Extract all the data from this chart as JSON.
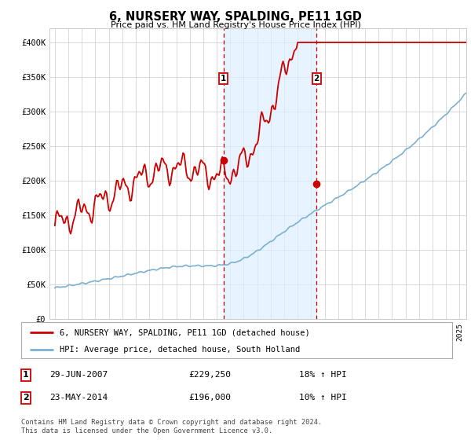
{
  "title": "6, NURSERY WAY, SPALDING, PE11 1GD",
  "subtitle": "Price paid vs. HM Land Registry's House Price Index (HPI)",
  "ylim": [
    0,
    420000
  ],
  "yticks": [
    0,
    50000,
    100000,
    150000,
    200000,
    250000,
    300000,
    350000,
    400000
  ],
  "ytick_labels": [
    "£0",
    "£50K",
    "£100K",
    "£150K",
    "£200K",
    "£250K",
    "£300K",
    "£350K",
    "£400K"
  ],
  "sale1_date": 2007.49,
  "sale1_price": 229250,
  "sale1_label": "1",
  "sale2_date": 2014.39,
  "sale2_price": 196000,
  "sale2_label": "2",
  "line_color_property": "#cc0000",
  "line_color_hpi": "#7ab0d4",
  "marker_color": "#cc0000",
  "shade_color": "#ddeeff",
  "vline_color": "#cc0000",
  "grid_color": "#cccccc",
  "background_color": "#ffffff",
  "legend_line1": "6, NURSERY WAY, SPALDING, PE11 1GD (detached house)",
  "legend_line2": "HPI: Average price, detached house, South Holland",
  "footnote": "Contains HM Land Registry data © Crown copyright and database right 2024.\nThis data is licensed under the Open Government Licence v3.0."
}
